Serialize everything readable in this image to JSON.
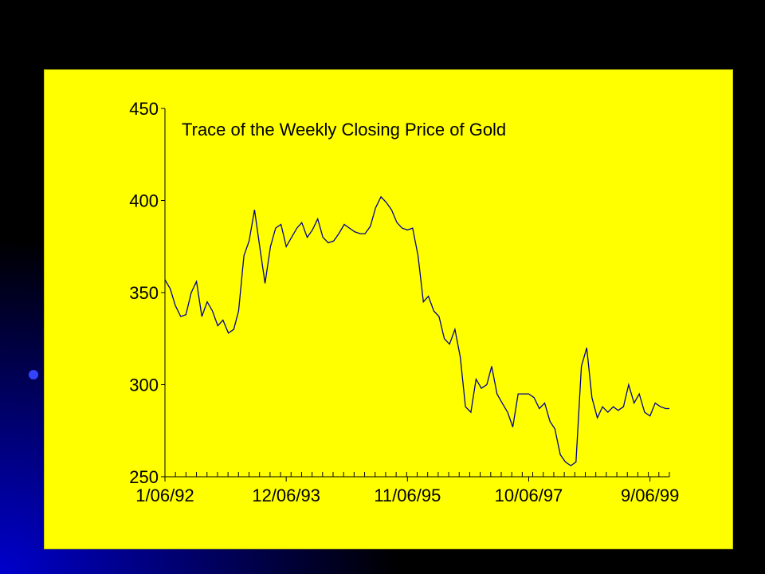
{
  "slide": {
    "background_color": "#000000",
    "accent_color": "#0000cc",
    "panel_color": "#ffff00"
  },
  "chart_data": {
    "type": "line",
    "title": "Trace of the Weekly Closing Price of Gold",
    "xlabel": "",
    "ylabel": "",
    "ylim": [
      250,
      450
    ],
    "yticks": [
      250,
      300,
      350,
      400,
      450
    ],
    "ytick_labels": [
      "250",
      "300",
      "350",
      "400",
      "450"
    ],
    "xlim": [
      "1992-01-06",
      "1999-12-27"
    ],
    "xtick_labels": [
      "1/06/92",
      "12/06/93",
      "11/06/95",
      "10/06/97",
      "9/06/99"
    ],
    "xtick_dates": [
      "1992-01-06",
      "1993-12-06",
      "1995-11-06",
      "1997-10-06",
      "1999-09-06"
    ],
    "grid": false,
    "line_color": "#00008b",
    "series": [
      {
        "name": "",
        "x": [
          "1992-01-06",
          "1992-02-06",
          "1992-03-06",
          "1992-04-06",
          "1992-05-06",
          "1992-06-06",
          "1992-07-06",
          "1992-08-06",
          "1992-09-06",
          "1992-10-06",
          "1992-11-06",
          "1992-12-06",
          "1993-01-06",
          "1993-02-06",
          "1993-03-06",
          "1993-04-06",
          "1993-05-06",
          "1993-06-06",
          "1993-07-06",
          "1993-08-06",
          "1993-09-06",
          "1993-10-06",
          "1993-11-06",
          "1993-12-06",
          "1994-01-06",
          "1994-02-06",
          "1994-03-06",
          "1994-04-06",
          "1994-05-06",
          "1994-06-06",
          "1994-07-06",
          "1994-08-06",
          "1994-09-06",
          "1994-10-06",
          "1994-11-06",
          "1994-12-06",
          "1995-01-06",
          "1995-02-06",
          "1995-03-06",
          "1995-04-06",
          "1995-05-06",
          "1995-06-06",
          "1995-07-06",
          "1995-08-06",
          "1995-09-06",
          "1995-10-06",
          "1995-11-06",
          "1995-12-06",
          "1996-01-06",
          "1996-02-06",
          "1996-03-06",
          "1996-04-06",
          "1996-05-06",
          "1996-06-06",
          "1996-07-06",
          "1996-08-06",
          "1996-09-06",
          "1996-10-06",
          "1996-11-06",
          "1996-12-06",
          "1997-01-06",
          "1997-02-06",
          "1997-03-06",
          "1997-04-06",
          "1997-05-06",
          "1997-06-06",
          "1997-07-06",
          "1997-08-06",
          "1997-09-06",
          "1997-10-06",
          "1997-11-06",
          "1997-12-06",
          "1998-01-06",
          "1998-02-06",
          "1998-03-06",
          "1998-04-06",
          "1998-05-06",
          "1998-06-06",
          "1998-07-06",
          "1998-08-06",
          "1998-09-06",
          "1998-10-06",
          "1998-11-06",
          "1998-12-06",
          "1999-01-06",
          "1999-02-06",
          "1999-03-06",
          "1999-04-06",
          "1999-05-06",
          "1999-06-06",
          "1999-07-06",
          "1999-08-06",
          "1999-09-06",
          "1999-10-06",
          "1999-11-06",
          "1999-12-06",
          "1999-12-27"
        ],
        "values": [
          357,
          352,
          343,
          337,
          338,
          350,
          356,
          337,
          345,
          340,
          332,
          335,
          328,
          330,
          340,
          370,
          378,
          395,
          375,
          355,
          375,
          385,
          387,
          375,
          380,
          385,
          388,
          380,
          384,
          390,
          380,
          377,
          378,
          382,
          387,
          385,
          383,
          382,
          382,
          386,
          396,
          402,
          399,
          395,
          388,
          385,
          384,
          385,
          370,
          345,
          348,
          340,
          337,
          325,
          322,
          330,
          315,
          288,
          285,
          303,
          298,
          300,
          310,
          295,
          290,
          285,
          277,
          295,
          295,
          295,
          293,
          287,
          290,
          280,
          276,
          262,
          258,
          256,
          258,
          310,
          320,
          293,
          282,
          288,
          285,
          288,
          286,
          288,
          300,
          290,
          295,
          285,
          283,
          290,
          288,
          287,
          287
        ]
      }
    ]
  }
}
